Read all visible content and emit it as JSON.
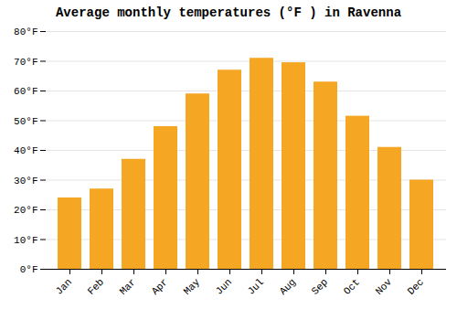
{
  "chart_data": {
    "type": "bar",
    "title": "Average monthly temperatures (°F ) in Ravenna",
    "categories": [
      "Jan",
      "Feb",
      "Mar",
      "Apr",
      "May",
      "Jun",
      "Jul",
      "Aug",
      "Sep",
      "Oct",
      "Nov",
      "Dec"
    ],
    "values": [
      24,
      27,
      37,
      48,
      59,
      67,
      71,
      69.5,
      63,
      51.5,
      41,
      30
    ],
    "color": "#F5A623",
    "ylim": [
      0,
      80
    ],
    "yticks": [
      {
        "value": 0,
        "label": "0°F"
      },
      {
        "value": 10,
        "label": "10°F"
      },
      {
        "value": 20,
        "label": "20°F"
      },
      {
        "value": 30,
        "label": "30°F"
      },
      {
        "value": 40,
        "label": "40°F"
      },
      {
        "value": 50,
        "label": "50°F"
      },
      {
        "value": 60,
        "label": "60°F"
      },
      {
        "value": 70,
        "label": "70°F"
      },
      {
        "value": 80,
        "label": "80°F"
      }
    ],
    "grid": true
  }
}
